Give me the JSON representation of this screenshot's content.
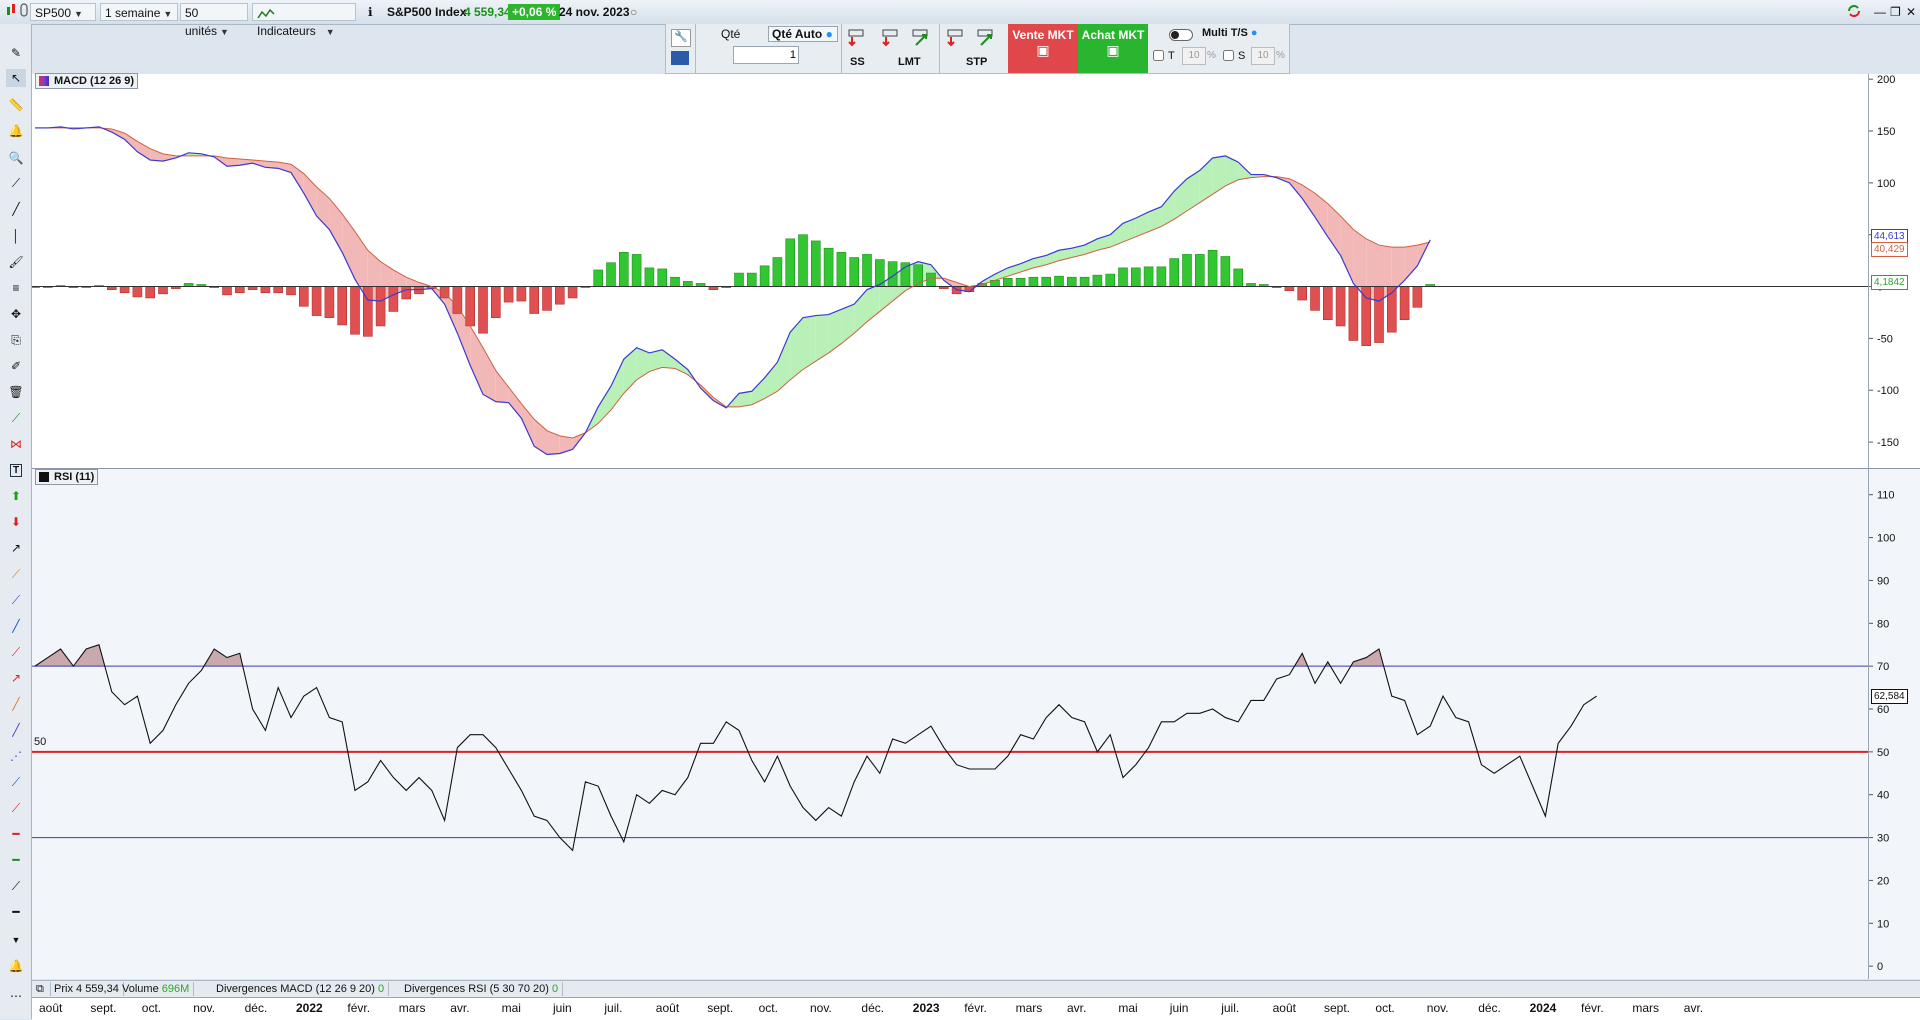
{
  "topbar": {
    "symbol": "SP500",
    "period": "1 semaine",
    "units": "50 unités",
    "indicators_label": "Indicateurs",
    "instrument_name": "S&P500 Index",
    "price": "4 559,34",
    "change": "+0,06 %",
    "date": "24 nov. 2023"
  },
  "order_toolbar": {
    "qty_label": "Qté",
    "qty_auto_label": "Qté Auto",
    "qty_value": "1",
    "ss_label": "SS",
    "lmt_label": "LMT",
    "stp_label": "STP",
    "sell_label": "Vente MKT",
    "buy_label": "Achat MKT",
    "multi_ts_label": "Multi T/S",
    "t_label": "T",
    "s_label": "S",
    "t_value": "10",
    "s_value": "10",
    "pct": "%"
  },
  "macd_panel": {
    "title": "MACD (12 26 9)",
    "tag_macd": "44,613",
    "tag_signal": "40,429",
    "tag_hist": "4,1842"
  },
  "rsi_panel": {
    "title": "RSI (11)",
    "level_label": "50",
    "tag_rsi": "62,584"
  },
  "bottombar": {
    "price_label": "Prix",
    "price_value": "4 559,34",
    "volume_label": "Volume",
    "volume_value": "696M",
    "div_macd_label": "Divergences MACD (12 26 9 20)",
    "div_macd_value": "0",
    "div_rsi_label": "Divergences RSI (5 30 70 20)",
    "div_rsi_value": "0"
  },
  "colors": {
    "macd_line": "#3a3ad0",
    "signal_line": "#d06040",
    "hist_pos": "#33c633",
    "hist_neg": "#e05050",
    "rsi_line": "#111111",
    "level_70_30": "#3a3aa8",
    "level_50": "#dd2222"
  },
  "chart_data": [
    {
      "type": "line",
      "title": "MACD (12 26 9)",
      "x_ticks": [
        "août",
        "sept.",
        "oct.",
        "nov.",
        "déc.",
        "2022",
        "févr.",
        "mars",
        "avr.",
        "mai",
        "juin",
        "juil.",
        "août",
        "sept.",
        "oct.",
        "nov.",
        "déc.",
        "2023",
        "févr.",
        "mars",
        "avr.",
        "mai",
        "juin",
        "juil.",
        "août",
        "sept.",
        "oct.",
        "nov.",
        "déc.",
        "2024",
        "févr.",
        "mars",
        "avr."
      ],
      "y_ticks": [
        200,
        150,
        100,
        50,
        0,
        -50,
        -100,
        -150
      ],
      "ylim": [
        -175,
        205
      ],
      "series": [
        {
          "name": "MACD",
          "values": [
            153,
            153,
            154,
            152,
            153,
            154,
            149,
            142,
            130,
            122,
            121,
            124,
            129,
            128,
            125,
            116,
            117,
            119,
            115,
            114,
            110,
            90,
            68,
            55,
            33,
            7,
            -13,
            -14,
            -8,
            -3,
            -3,
            -2,
            -17,
            -45,
            -76,
            -104,
            -111,
            -112,
            -127,
            -154,
            -162,
            -161,
            -157,
            -141,
            -116,
            -96,
            -70,
            -59,
            -64,
            -61,
            -70,
            -80,
            -98,
            -110,
            -117,
            -103,
            -101,
            -88,
            -73,
            -44,
            -30,
            -28,
            -27,
            -22,
            -17,
            -3,
            2,
            10,
            19,
            24,
            21,
            6,
            -3,
            -5,
            5,
            12,
            18,
            22,
            27,
            30,
            35,
            37,
            40,
            46,
            50,
            61,
            66,
            72,
            77,
            92,
            104,
            112,
            124,
            126,
            120,
            108,
            108,
            105,
            100,
            85,
            67,
            48,
            30,
            3,
            -11,
            -14,
            -6,
            6,
            20,
            45
          ]
        },
        {
          "name": "Signal",
          "values": [
            153,
            153,
            153,
            153,
            153,
            153,
            152,
            148,
            140,
            133,
            128,
            126,
            126,
            126,
            126,
            124,
            123,
            122,
            121,
            120,
            118,
            109,
            96,
            85,
            70,
            53,
            35,
            24,
            16,
            9,
            4,
            0,
            -6,
            -19,
            -38,
            -59,
            -81,
            -97,
            -113,
            -128,
            -139,
            -144,
            -146,
            -141,
            -132,
            -119,
            -103,
            -90,
            -82,
            -78,
            -79,
            -85,
            -95,
            -107,
            -116,
            -116,
            -114,
            -108,
            -101,
            -90,
            -80,
            -72,
            -64,
            -55,
            -45,
            -34,
            -24,
            -14,
            -4,
            3,
            8,
            8,
            4,
            0,
            2,
            6,
            10,
            14,
            18,
            21,
            25,
            28,
            31,
            35,
            38,
            43,
            48,
            53,
            58,
            65,
            73,
            81,
            89,
            97,
            103,
            105,
            106,
            106,
            104,
            98,
            90,
            80,
            68,
            55,
            46,
            40,
            38,
            38,
            40,
            43
          ]
        },
        {
          "name": "Histogramme",
          "values": [
            0,
            0,
            1,
            -1,
            0,
            1,
            -3,
            -6,
            -10,
            -11,
            -7,
            -2,
            3,
            2,
            -1,
            -8,
            -6,
            -3,
            -6,
            -6,
            -8,
            -19,
            -28,
            -30,
            -37,
            -46,
            -48,
            -38,
            -24,
            -12,
            -7,
            -2,
            -11,
            -26,
            -38,
            -45,
            -30,
            -15,
            -14,
            -26,
            -23,
            -17,
            -11,
            0,
            16,
            23,
            33,
            31,
            18,
            17,
            9,
            5,
            3,
            -3,
            -1,
            13,
            13,
            20,
            28,
            46,
            50,
            44,
            37,
            33,
            28,
            31,
            26,
            24,
            23,
            21,
            13,
            -2,
            -7,
            -5,
            3,
            6,
            8,
            8,
            9,
            9,
            10,
            9,
            9,
            11,
            12,
            18,
            18,
            19,
            19,
            27,
            31,
            31,
            35,
            29,
            17,
            3,
            2,
            -1,
            -4,
            -13,
            -23,
            -32,
            -38,
            -52,
            -57,
            -54,
            -44,
            -32,
            -20,
            2
          ]
        }
      ]
    },
    {
      "type": "line",
      "title": "RSI (11)",
      "y_ticks": [
        110,
        100,
        90,
        80,
        70,
        60,
        50,
        40,
        30,
        20,
        10,
        0
      ],
      "ylim": [
        -3,
        116
      ],
      "levels": [
        70,
        50,
        30
      ],
      "series": [
        {
          "name": "RSI",
          "values": [
            70,
            72,
            74,
            70,
            74,
            75,
            64,
            61,
            63,
            52,
            55,
            61,
            66,
            69,
            74,
            72,
            73,
            60,
            55,
            65,
            58,
            63,
            65,
            58,
            57,
            41,
            43,
            48,
            44,
            41,
            44,
            41,
            34,
            51,
            54,
            54,
            51,
            46,
            41,
            35,
            34,
            30,
            27,
            43,
            42,
            35,
            29,
            40,
            38,
            41,
            40,
            44,
            52,
            52,
            57,
            55,
            48,
            43,
            49,
            42,
            37,
            34,
            37,
            35,
            43,
            49,
            45,
            53,
            52,
            54,
            56,
            51,
            47,
            46,
            46,
            46,
            49,
            54,
            53,
            58,
            61,
            58,
            57,
            50,
            54,
            44,
            47,
            51,
            57,
            57,
            59,
            59,
            60,
            58,
            57,
            62,
            62,
            67,
            68,
            73,
            66,
            71,
            66,
            71,
            72,
            74,
            63,
            62,
            54,
            56,
            63,
            58,
            57,
            47,
            45,
            47,
            49,
            42,
            35,
            52,
            56,
            61,
            63
          ]
        }
      ]
    }
  ]
}
